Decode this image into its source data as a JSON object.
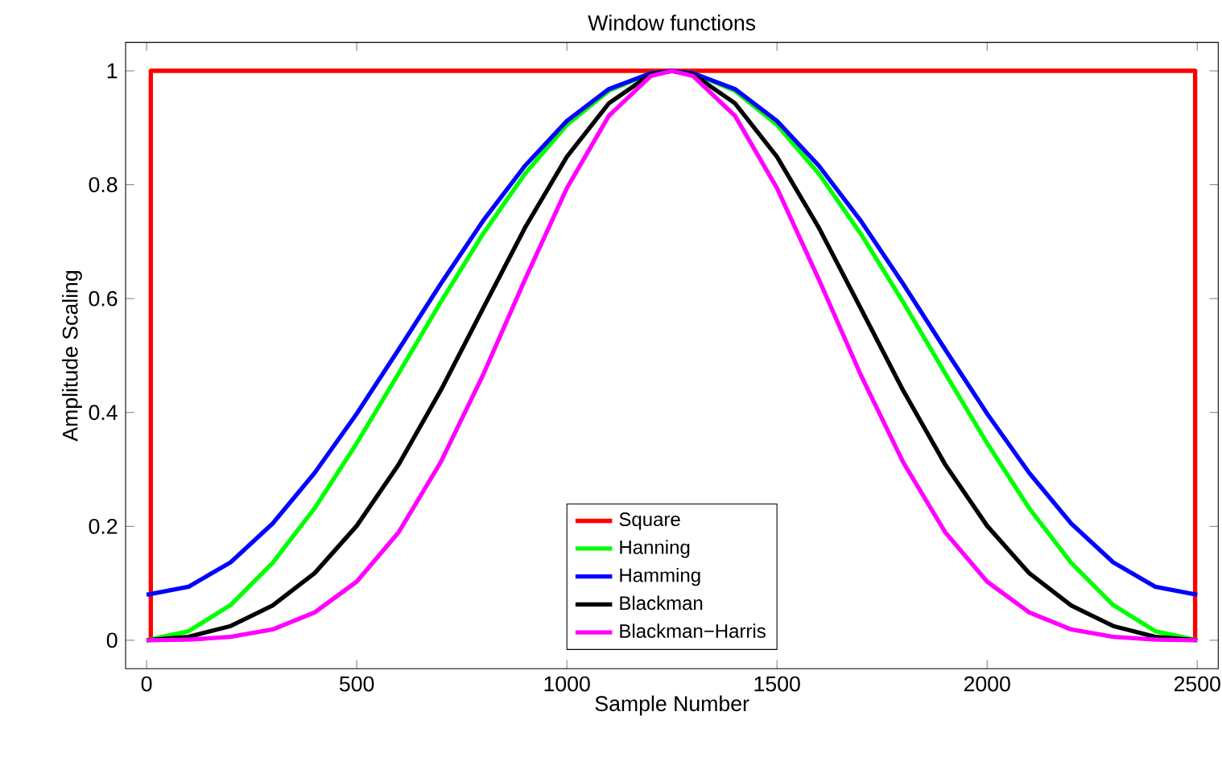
{
  "chart_data": {
    "type": "line",
    "title": "Window functions",
    "xlabel": "Sample Number",
    "ylabel": "Amplitude Scaling",
    "xlim": [
      -50,
      2550
    ],
    "ylim": [
      -0.05,
      1.05
    ],
    "xticks": [
      0,
      500,
      1000,
      1500,
      2000,
      2500
    ],
    "yticks": [
      0,
      0.2,
      0.4,
      0.6,
      0.8,
      1
    ],
    "legend": "bottom",
    "grid": false,
    "marker": "none",
    "line_style": "solid",
    "series": [
      {
        "name": "Square",
        "color": "#ff0000",
        "x": [
          10,
          10,
          2495,
          2495
        ],
        "values": [
          0,
          1,
          1,
          0
        ]
      },
      {
        "name": "Hanning",
        "color": "#00ff00",
        "x": [
          0,
          100,
          200,
          300,
          400,
          500,
          600,
          700,
          800,
          900,
          1000,
          1100,
          1200,
          1250,
          1300,
          1400,
          1500,
          1600,
          1700,
          1800,
          1900,
          2000,
          2100,
          2200,
          2300,
          2400,
          2500
        ],
        "values": [
          0,
          0.016,
          0.062,
          0.136,
          0.232,
          0.346,
          0.469,
          0.594,
          0.713,
          0.819,
          0.905,
          0.965,
          0.996,
          1,
          0.996,
          0.965,
          0.905,
          0.819,
          0.713,
          0.594,
          0.469,
          0.346,
          0.232,
          0.136,
          0.062,
          0.016,
          0
        ]
      },
      {
        "name": "Hamming",
        "color": "#0000ff",
        "x": [
          0,
          100,
          200,
          300,
          400,
          500,
          600,
          700,
          800,
          900,
          1000,
          1100,
          1200,
          1250,
          1300,
          1400,
          1500,
          1600,
          1700,
          1800,
          1900,
          2000,
          2100,
          2200,
          2300,
          2400,
          2500
        ],
        "values": [
          0.08,
          0.094,
          0.137,
          0.205,
          0.294,
          0.398,
          0.511,
          0.626,
          0.736,
          0.833,
          0.912,
          0.968,
          0.996,
          1,
          0.996,
          0.968,
          0.912,
          0.833,
          0.736,
          0.626,
          0.511,
          0.398,
          0.294,
          0.205,
          0.137,
          0.094,
          0.08
        ]
      },
      {
        "name": "Blackman",
        "color": "#000000",
        "x": [
          0,
          100,
          200,
          300,
          400,
          500,
          600,
          700,
          800,
          900,
          1000,
          1100,
          1200,
          1250,
          1300,
          1400,
          1500,
          1600,
          1700,
          1800,
          1900,
          2000,
          2100,
          2200,
          2300,
          2400,
          2500
        ],
        "values": [
          0,
          0.006,
          0.025,
          0.061,
          0.118,
          0.201,
          0.309,
          0.439,
          0.582,
          0.724,
          0.849,
          0.943,
          0.994,
          1,
          0.994,
          0.943,
          0.849,
          0.724,
          0.582,
          0.439,
          0.309,
          0.201,
          0.118,
          0.061,
          0.025,
          0.006,
          0
        ]
      },
      {
        "name": "Blackman−Harris",
        "color": "#ff00ff",
        "x": [
          0,
          100,
          200,
          300,
          400,
          500,
          600,
          700,
          800,
          900,
          1000,
          1100,
          1200,
          1250,
          1300,
          1400,
          1500,
          1600,
          1700,
          1800,
          1900,
          2000,
          2100,
          2200,
          2300,
          2400,
          2500
        ],
        "values": [
          0,
          0.001,
          0.006,
          0.019,
          0.049,
          0.103,
          0.19,
          0.313,
          0.465,
          0.633,
          0.794,
          0.921,
          0.991,
          1,
          0.991,
          0.921,
          0.794,
          0.633,
          0.465,
          0.313,
          0.19,
          0.103,
          0.049,
          0.019,
          0.006,
          0.001,
          0
        ]
      }
    ]
  }
}
